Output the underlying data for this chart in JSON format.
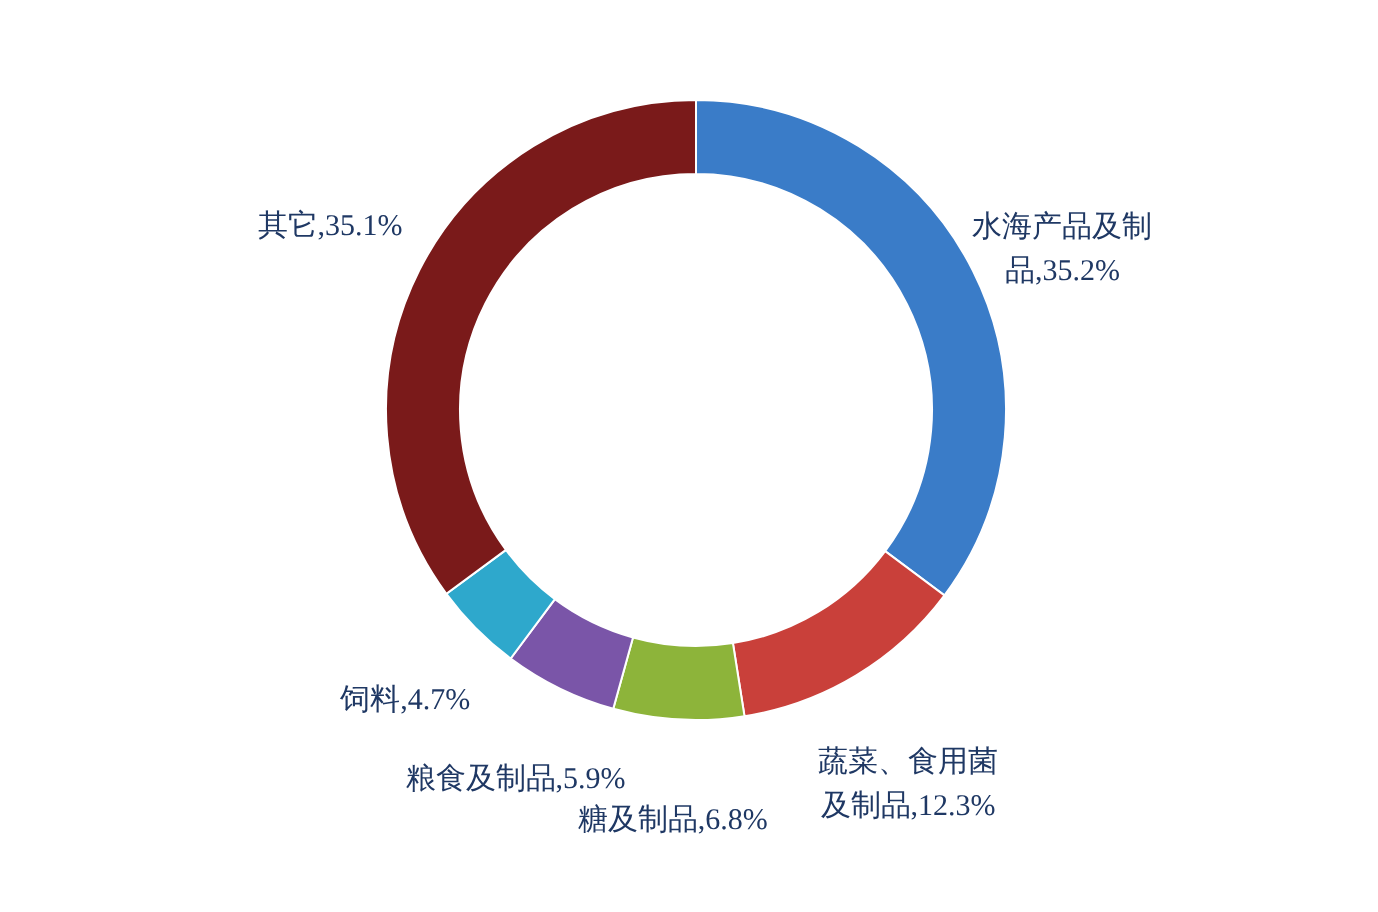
{
  "chart_data": {
    "type": "donut",
    "categories": [
      "水海产品及制品",
      "蔬菜、食用菌及制品",
      "糖及制品",
      "粮食及制品",
      "饲料",
      "其它"
    ],
    "values": [
      35.2,
      12.3,
      6.8,
      5.9,
      4.7,
      35.1
    ],
    "value_labels": [
      "35.2%",
      "12.3%",
      "6.8%",
      "5.9%",
      "4.7%",
      "35.1%"
    ],
    "colors": [
      "#3a7cc8",
      "#c9403a",
      "#8db43a",
      "#7a55a8",
      "#2ea8cc",
      "#7a1a1a"
    ]
  }
}
